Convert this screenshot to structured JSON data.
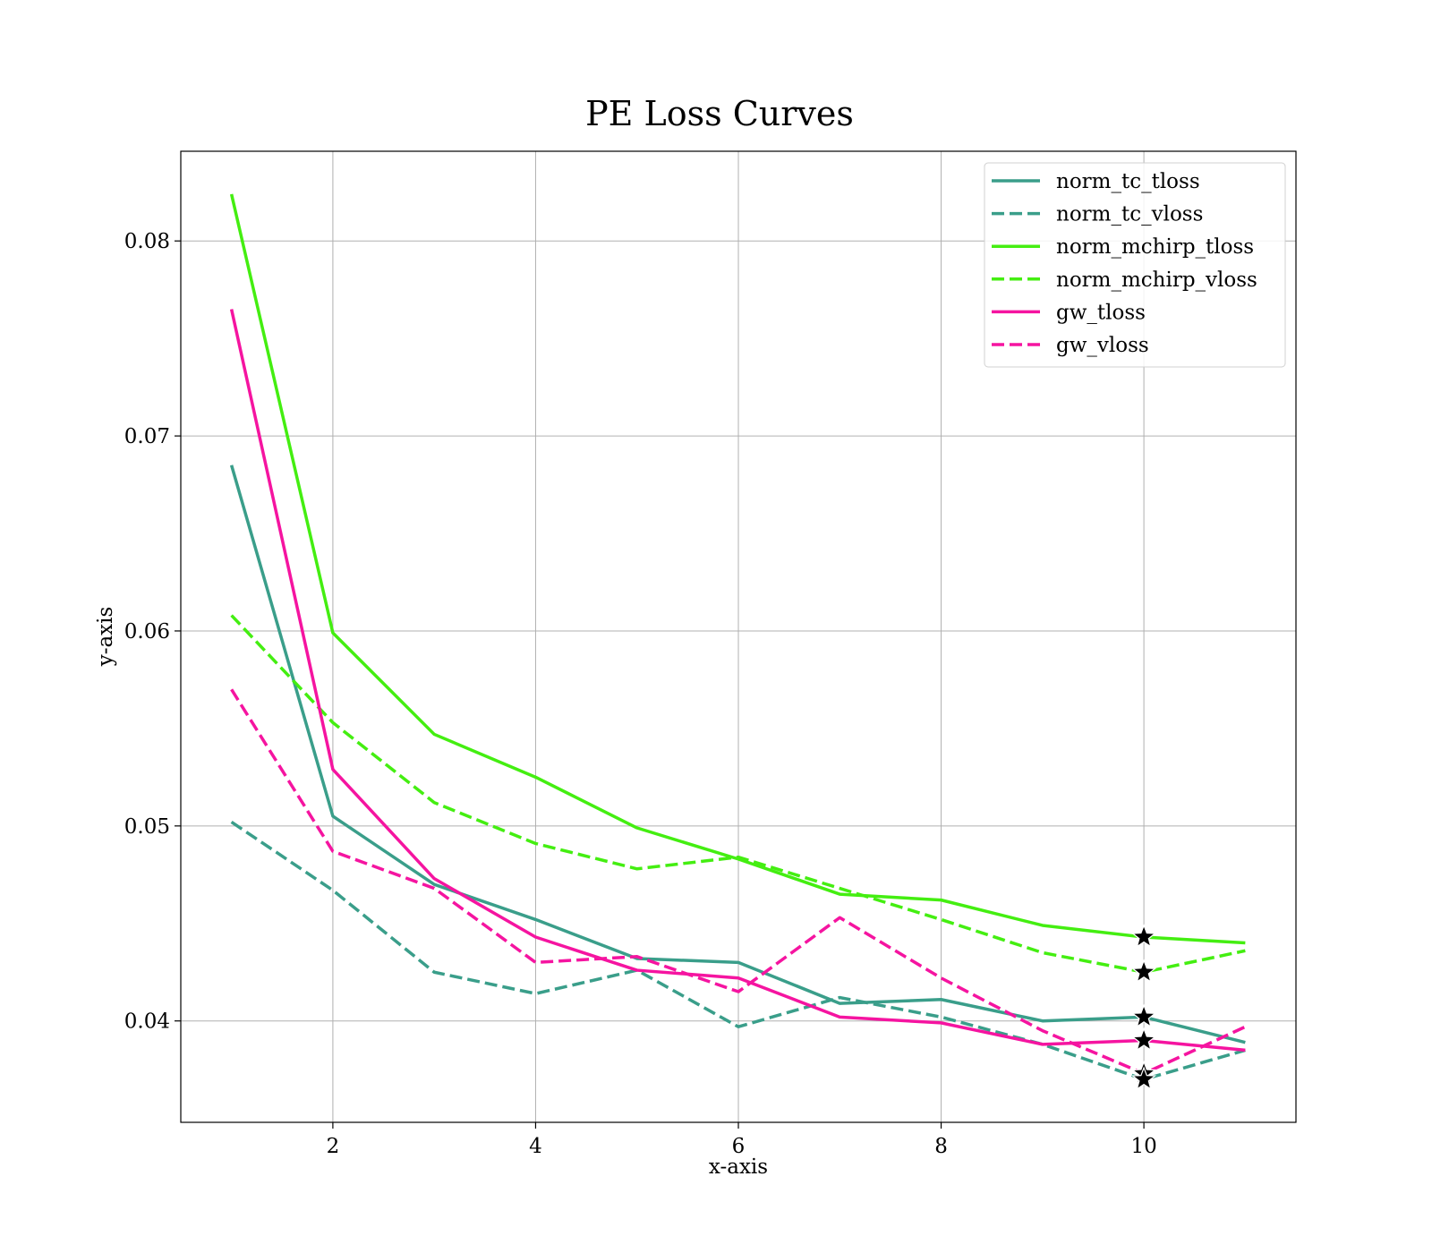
{
  "chart_data": {
    "type": "line",
    "title": "PE Loss Curves",
    "xlabel": "x-axis",
    "ylabel": "y-axis",
    "xlim": [
      0.5,
      11.5
    ],
    "ylim": [
      0.0348,
      0.0846
    ],
    "xticks": [
      2,
      4,
      6,
      8,
      10
    ],
    "xtick_labels": [
      "2",
      "4",
      "6",
      "8",
      "10"
    ],
    "yticks": [
      0.04,
      0.05,
      0.06,
      0.07,
      0.08
    ],
    "ytick_labels": [
      "0.04",
      "0.05",
      "0.06",
      "0.07",
      "0.08"
    ],
    "grid": true,
    "legend_position": "top-right",
    "x": [
      1,
      2,
      3,
      4,
      5,
      6,
      7,
      8,
      9,
      10,
      11
    ],
    "series": [
      {
        "name": "norm_tc_tloss",
        "color": "#3a9e8a",
        "style": "solid",
        "values": [
          0.0685,
          0.0505,
          0.047,
          0.0452,
          0.0432,
          0.043,
          0.0409,
          0.0411,
          0.04,
          0.0402,
          0.0389
        ]
      },
      {
        "name": "norm_tc_vloss",
        "color": "#3a9e8a",
        "style": "dashed",
        "values": [
          0.0502,
          0.0467,
          0.0425,
          0.0414,
          0.0426,
          0.0397,
          0.0412,
          0.0402,
          0.0388,
          0.037,
          0.0385
        ]
      },
      {
        "name": "norm_mchirp_tloss",
        "color": "#44ee11",
        "style": "solid",
        "values": [
          0.0824,
          0.0599,
          0.0547,
          0.0525,
          0.0499,
          0.0483,
          0.0465,
          0.0462,
          0.0449,
          0.0443,
          0.044
        ]
      },
      {
        "name": "norm_mchirp_vloss",
        "color": "#44ee11",
        "style": "dashed",
        "values": [
          0.0608,
          0.0553,
          0.0512,
          0.0491,
          0.0478,
          0.0484,
          0.0468,
          0.0452,
          0.0435,
          0.0425,
          0.0436
        ]
      },
      {
        "name": "gw_tloss",
        "color": "#f514a0",
        "style": "solid",
        "values": [
          0.0765,
          0.0529,
          0.0473,
          0.0443,
          0.0426,
          0.0422,
          0.0402,
          0.0399,
          0.0388,
          0.039,
          0.0385
        ]
      },
      {
        "name": "gw_vloss",
        "color": "#f514a0",
        "style": "dashed",
        "values": [
          0.057,
          0.0487,
          0.0468,
          0.043,
          0.0433,
          0.0415,
          0.0453,
          0.0422,
          0.0395,
          0.0373,
          0.0397
        ]
      }
    ],
    "markers": {
      "shape": "star",
      "color": "#000000",
      "points": [
        {
          "x": 10,
          "y": 0.0443
        },
        {
          "x": 10,
          "y": 0.0425
        },
        {
          "x": 10,
          "y": 0.0402
        },
        {
          "x": 10,
          "y": 0.039
        },
        {
          "x": 10,
          "y": 0.0373
        },
        {
          "x": 10,
          "y": 0.037
        }
      ]
    }
  }
}
